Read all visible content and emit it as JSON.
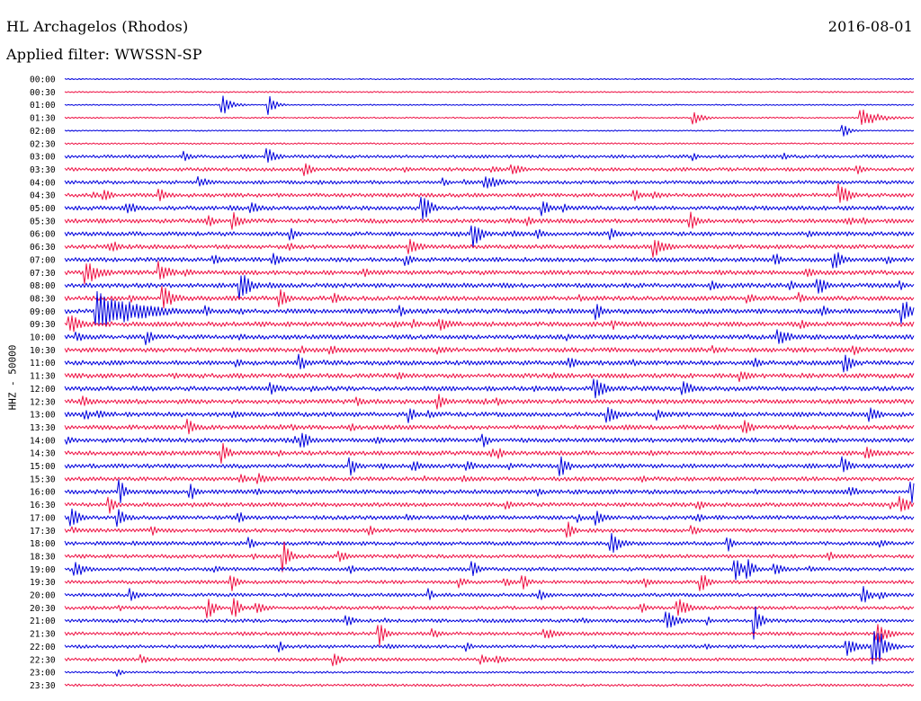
{
  "header": {
    "station": "HL Archagelos (Rhodos)",
    "date": "2016-08-01",
    "filter": "Applied filter: WWSSN-SP"
  },
  "chart_data": {
    "type": "line",
    "title": "HL Archagelos (Rhodos)",
    "ylabel": "HHZ - 50000",
    "tick_labels": [
      "00:00",
      "00:30",
      "01:00",
      "01:30",
      "02:00",
      "02:30",
      "03:00",
      "03:30",
      "04:00",
      "04:30",
      "05:00",
      "05:30",
      "06:00",
      "06:30",
      "07:00",
      "07:30",
      "08:00",
      "08:30",
      "09:00",
      "09:30",
      "10:00",
      "10:30",
      "11:00",
      "11:30",
      "12:00",
      "12:30",
      "13:00",
      "13:30",
      "14:00",
      "14:30",
      "15:00",
      "15:30",
      "16:00",
      "16:30",
      "17:00",
      "17:30",
      "18:00",
      "18:30",
      "19:00",
      "19:30",
      "20:00",
      "20:30",
      "21:00",
      "21:30",
      "22:00",
      "22:30",
      "23:00",
      "23:30"
    ],
    "series_colors": [
      "#0000dd",
      "#ee1144"
    ],
    "noise_levels": [
      0.6,
      0.8,
      0.7,
      0.8,
      0.7,
      0.9,
      1.8,
      2.0,
      2.0,
      2.2,
      2.4,
      2.4,
      2.4,
      2.4,
      2.4,
      2.5,
      2.6,
      2.6,
      2.7,
      2.7,
      2.6,
      2.6,
      2.6,
      2.6,
      2.6,
      2.6,
      2.6,
      2.5,
      2.5,
      2.5,
      2.4,
      2.3,
      2.4,
      2.3,
      2.3,
      2.2,
      2.2,
      2.1,
      2.1,
      2.0,
      2.0,
      2.0,
      2.0,
      2.0,
      1.9,
      1.8,
      1.2,
      1.4
    ],
    "events": [
      {
        "row": 2,
        "x": 248,
        "amp": 13,
        "dur": 10
      },
      {
        "row": 2,
        "x": 299,
        "amp": 11,
        "dur": 8
      },
      {
        "row": 3,
        "x": 772,
        "amp": 7,
        "dur": 12
      },
      {
        "row": 3,
        "x": 958,
        "amp": 10,
        "dur": 22
      },
      {
        "row": 4,
        "x": 937,
        "amp": 9,
        "dur": 8
      },
      {
        "row": 6,
        "x": 298,
        "amp": 10,
        "dur": 10
      },
      {
        "row": 6,
        "x": 205,
        "amp": 7,
        "dur": 8
      },
      {
        "row": 7,
        "x": 340,
        "amp": 8,
        "dur": 10
      },
      {
        "row": 8,
        "x": 540,
        "amp": 8,
        "dur": 20
      },
      {
        "row": 9,
        "x": 178,
        "amp": 9,
        "dur": 8
      },
      {
        "row": 9,
        "x": 933,
        "amp": 14,
        "dur": 12
      },
      {
        "row": 10,
        "x": 470,
        "amp": 16,
        "dur": 10
      },
      {
        "row": 10,
        "x": 604,
        "amp": 10,
        "dur": 8
      },
      {
        "row": 11,
        "x": 260,
        "amp": 10,
        "dur": 10
      },
      {
        "row": 11,
        "x": 768,
        "amp": 10,
        "dur": 10
      },
      {
        "row": 12,
        "x": 526,
        "amp": 16,
        "dur": 10
      },
      {
        "row": 12,
        "x": 323,
        "amp": 10,
        "dur": 8
      },
      {
        "row": 13,
        "x": 455,
        "amp": 10,
        "dur": 10
      },
      {
        "row": 13,
        "x": 727,
        "amp": 12,
        "dur": 14
      },
      {
        "row": 14,
        "x": 928,
        "amp": 11,
        "dur": 12
      },
      {
        "row": 15,
        "x": 95,
        "amp": 16,
        "dur": 14
      },
      {
        "row": 15,
        "x": 178,
        "amp": 13,
        "dur": 12
      },
      {
        "row": 16,
        "x": 268,
        "amp": 16,
        "dur": 12
      },
      {
        "row": 16,
        "x": 910,
        "amp": 12,
        "dur": 10
      },
      {
        "row": 17,
        "x": 182,
        "amp": 14,
        "dur": 14
      },
      {
        "row": 17,
        "x": 312,
        "amp": 10,
        "dur": 10
      },
      {
        "row": 18,
        "x": 108,
        "amp": 24,
        "dur": 46
      },
      {
        "row": 18,
        "x": 663,
        "amp": 11,
        "dur": 10
      },
      {
        "row": 18,
        "x": 1004,
        "amp": 14,
        "dur": 14
      },
      {
        "row": 19,
        "x": 78,
        "amp": 12,
        "dur": 14
      },
      {
        "row": 19,
        "x": 490,
        "amp": 9,
        "dur": 14
      },
      {
        "row": 20,
        "x": 163,
        "amp": 9,
        "dur": 10
      },
      {
        "row": 20,
        "x": 865,
        "amp": 10,
        "dur": 16
      },
      {
        "row": 22,
        "x": 333,
        "amp": 10,
        "dur": 10
      },
      {
        "row": 22,
        "x": 940,
        "amp": 12,
        "dur": 10
      },
      {
        "row": 24,
        "x": 662,
        "amp": 11,
        "dur": 14
      },
      {
        "row": 24,
        "x": 760,
        "amp": 9,
        "dur": 14
      },
      {
        "row": 25,
        "x": 487,
        "amp": 10,
        "dur": 10
      },
      {
        "row": 26,
        "x": 455,
        "amp": 10,
        "dur": 8
      },
      {
        "row": 26,
        "x": 676,
        "amp": 10,
        "dur": 14
      },
      {
        "row": 26,
        "x": 967,
        "amp": 11,
        "dur": 10
      },
      {
        "row": 27,
        "x": 210,
        "amp": 12,
        "dur": 8
      },
      {
        "row": 27,
        "x": 827,
        "amp": 10,
        "dur": 12
      },
      {
        "row": 28,
        "x": 336,
        "amp": 11,
        "dur": 10
      },
      {
        "row": 28,
        "x": 538,
        "amp": 8,
        "dur": 8
      },
      {
        "row": 29,
        "x": 247,
        "amp": 14,
        "dur": 8
      },
      {
        "row": 29,
        "x": 963,
        "amp": 9,
        "dur": 14
      },
      {
        "row": 30,
        "x": 390,
        "amp": 11,
        "dur": 8
      },
      {
        "row": 30,
        "x": 624,
        "amp": 12,
        "dur": 10
      },
      {
        "row": 30,
        "x": 937,
        "amp": 11,
        "dur": 10
      },
      {
        "row": 32,
        "x": 133,
        "amp": 14,
        "dur": 8
      },
      {
        "row": 32,
        "x": 212,
        "amp": 11,
        "dur": 8
      },
      {
        "row": 32,
        "x": 1013,
        "amp": 14,
        "dur": 8
      },
      {
        "row": 33,
        "x": 122,
        "amp": 10,
        "dur": 8
      },
      {
        "row": 33,
        "x": 1002,
        "amp": 10,
        "dur": 12
      },
      {
        "row": 34,
        "x": 80,
        "amp": 12,
        "dur": 10
      },
      {
        "row": 34,
        "x": 131,
        "amp": 10,
        "dur": 12
      },
      {
        "row": 34,
        "x": 664,
        "amp": 10,
        "dur": 10
      },
      {
        "row": 35,
        "x": 632,
        "amp": 10,
        "dur": 8
      },
      {
        "row": 36,
        "x": 680,
        "amp": 12,
        "dur": 12
      },
      {
        "row": 36,
        "x": 810,
        "amp": 9,
        "dur": 6
      },
      {
        "row": 37,
        "x": 316,
        "amp": 18,
        "dur": 8
      },
      {
        "row": 38,
        "x": 83,
        "amp": 10,
        "dur": 14
      },
      {
        "row": 38,
        "x": 525,
        "amp": 10,
        "dur": 8
      },
      {
        "row": 38,
        "x": 817,
        "amp": 13,
        "dur": 10
      },
      {
        "row": 38,
        "x": 832,
        "amp": 13,
        "dur": 8
      },
      {
        "row": 39,
        "x": 258,
        "amp": 10,
        "dur": 8
      },
      {
        "row": 39,
        "x": 582,
        "amp": 9,
        "dur": 8
      },
      {
        "row": 39,
        "x": 780,
        "amp": 12,
        "dur": 8
      },
      {
        "row": 40,
        "x": 960,
        "amp": 10,
        "dur": 10
      },
      {
        "row": 41,
        "x": 232,
        "amp": 12,
        "dur": 8
      },
      {
        "row": 41,
        "x": 260,
        "amp": 14,
        "dur": 8
      },
      {
        "row": 41,
        "x": 754,
        "amp": 12,
        "dur": 12
      },
      {
        "row": 42,
        "x": 742,
        "amp": 12,
        "dur": 14
      },
      {
        "row": 42,
        "x": 840,
        "amp": 22,
        "dur": 6
      },
      {
        "row": 43,
        "x": 421,
        "amp": 16,
        "dur": 8
      },
      {
        "row": 43,
        "x": 975,
        "amp": 12,
        "dur": 14
      },
      {
        "row": 44,
        "x": 972,
        "amp": 28,
        "dur": 12
      },
      {
        "row": 44,
        "x": 942,
        "amp": 10,
        "dur": 16
      },
      {
        "row": 45,
        "x": 371,
        "amp": 10,
        "dur": 8
      },
      {
        "row": 46,
        "x": 131,
        "amp": 5,
        "dur": 6
      }
    ]
  }
}
